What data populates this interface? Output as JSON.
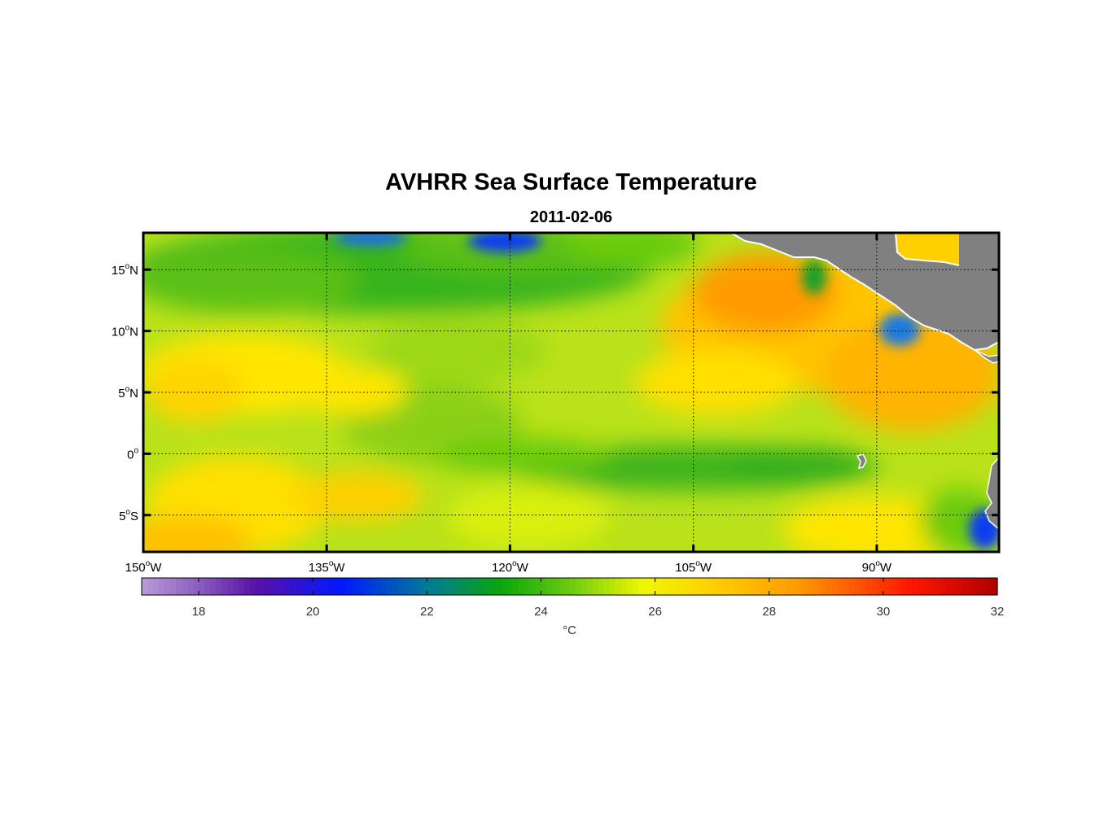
{
  "title": "AVHRR Sea Surface Temperature",
  "subtitle": "2011-02-06",
  "map": {
    "lon_range": [
      -150,
      -80
    ],
    "lat_range": [
      -8,
      18
    ],
    "grid": "dotted",
    "land_color": "#808080",
    "lon_ticks": [
      {
        "value": -150,
        "label": "150",
        "unit": "W"
      },
      {
        "value": -135,
        "label": "135",
        "unit": "W"
      },
      {
        "value": -120,
        "label": "120",
        "unit": "W"
      },
      {
        "value": -105,
        "label": "105",
        "unit": "W"
      },
      {
        "value": -90,
        "label": "90",
        "unit": "W"
      }
    ],
    "lat_ticks": [
      {
        "value": 15,
        "label": "15",
        "unit": "N"
      },
      {
        "value": 10,
        "label": "10",
        "unit": "N"
      },
      {
        "value": 5,
        "label": "5",
        "unit": "N"
      },
      {
        "value": 0,
        "label": "0",
        "unit": ""
      },
      {
        "value": -5,
        "label": "5",
        "unit": "S"
      }
    ]
  },
  "colorbar": {
    "min": 17,
    "max": 32,
    "ticks": [
      18,
      20,
      22,
      24,
      26,
      28,
      30,
      32
    ],
    "unit_label": "°C",
    "stops": [
      {
        "value": 17,
        "color": "#b79bd8"
      },
      {
        "value": 18,
        "color": "#8b5dbf"
      },
      {
        "value": 19,
        "color": "#5a10a8"
      },
      {
        "value": 20.5,
        "color": "#0018ff"
      },
      {
        "value": 22,
        "color": "#007a9a"
      },
      {
        "value": 23.3,
        "color": "#0aa60a"
      },
      {
        "value": 24.5,
        "color": "#6acb10"
      },
      {
        "value": 25.8,
        "color": "#f0f800"
      },
      {
        "value": 27,
        "color": "#ffd000"
      },
      {
        "value": 28.5,
        "color": "#ff9b00"
      },
      {
        "value": 30.5,
        "color": "#ff1500"
      },
      {
        "value": 32,
        "color": "#b00000"
      }
    ]
  }
}
